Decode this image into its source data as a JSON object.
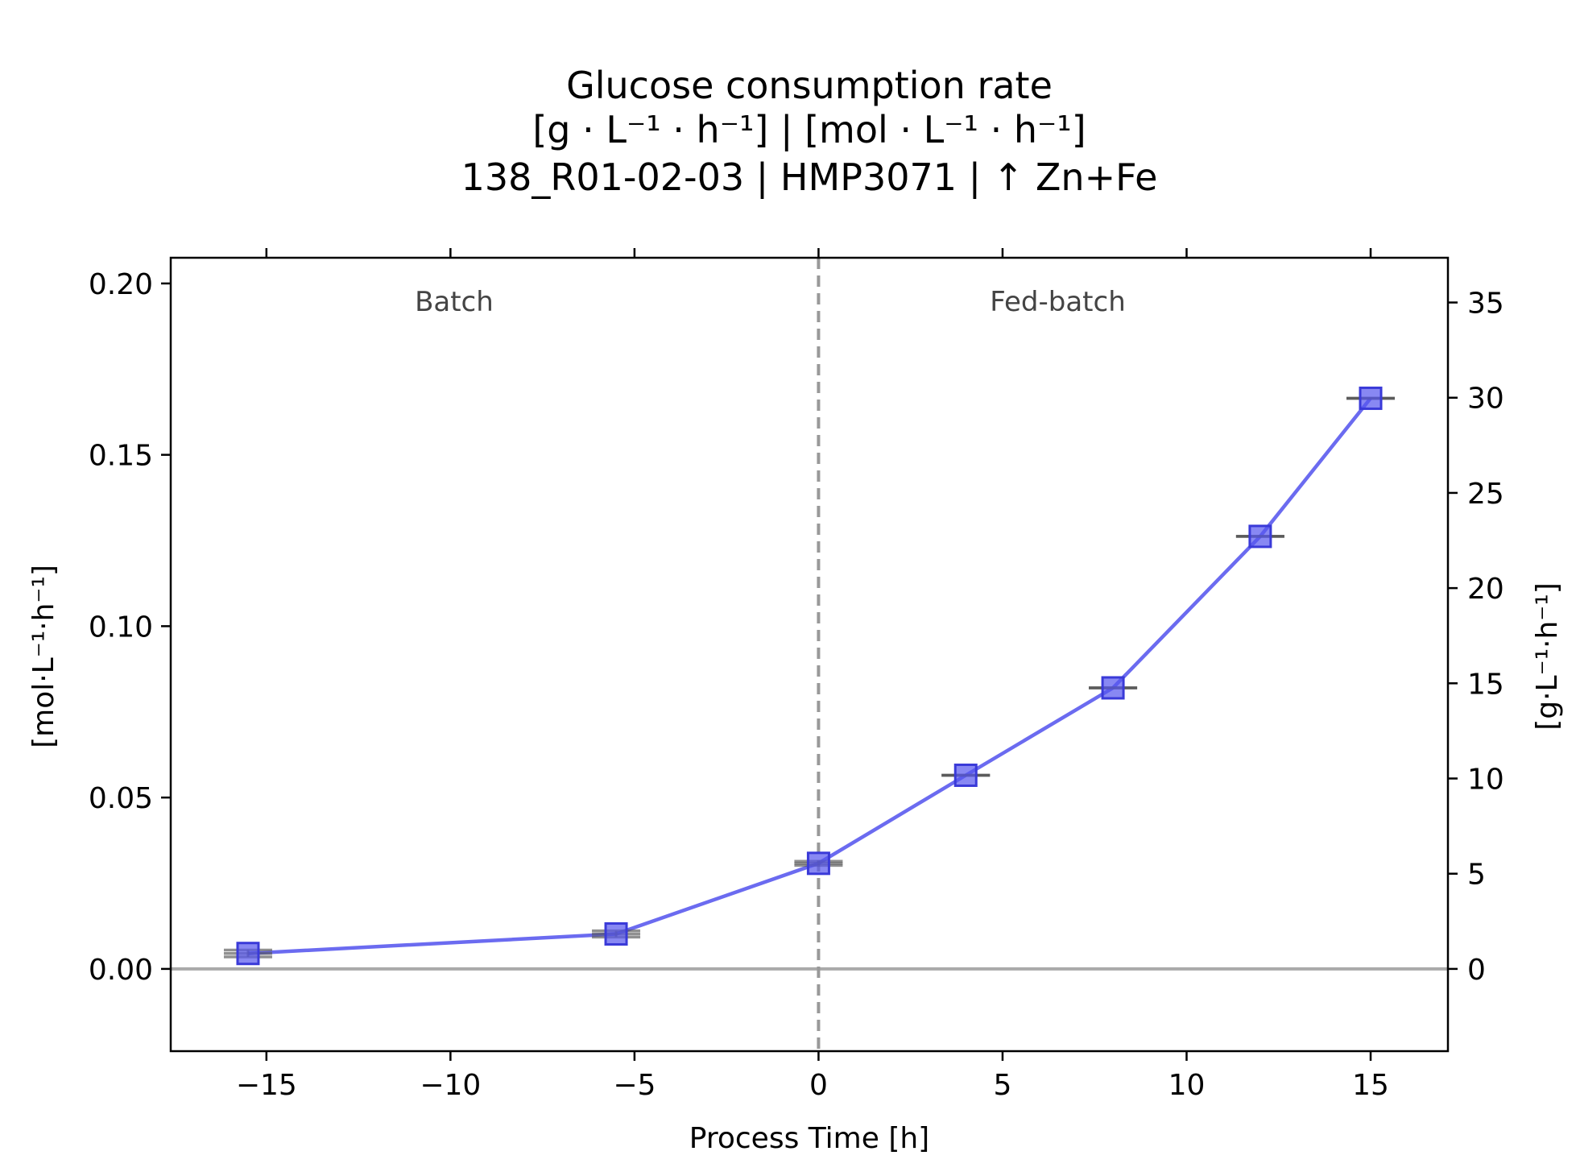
{
  "chart_data": {
    "type": "line",
    "title_lines": [
      "Glucose consumption rate",
      "[g · L⁻¹ · h⁻¹]    |    [mol · L⁻¹ · h⁻¹]",
      "138_R01-02-03  |  HMP3071  |  ↑ Zn+Fe"
    ],
    "xlabel": "Process Time [h]",
    "ylabel_left": "[mol·L⁻¹·h⁻¹]",
    "ylabel_right": "[g·L⁻¹·h⁻¹]",
    "xlim": [
      -17.6,
      17.1
    ],
    "ylim_left": [
      -0.024,
      0.2075
    ],
    "ylim_right": [
      -4.32,
      37.35
    ],
    "xticks": [
      -15,
      -10,
      -5,
      0,
      5,
      10,
      15
    ],
    "xtick_labels": [
      "−15",
      "−10",
      "−5",
      "0",
      "5",
      "10",
      "15"
    ],
    "yticks_left": [
      0.0,
      0.05,
      0.1,
      0.15,
      0.2
    ],
    "ytick_labels_left": [
      "0.00",
      "0.05",
      "0.10",
      "0.15",
      "0.20"
    ],
    "yticks_right": [
      0,
      5,
      10,
      15,
      20,
      25,
      30,
      35
    ],
    "ytick_labels_right": [
      "0",
      "5",
      "10",
      "15",
      "20",
      "25",
      "30",
      "35"
    ],
    "phase_boundary_x": 0,
    "phases": [
      {
        "label": "Batch",
        "x": -9.9,
        "y": 0.192
      },
      {
        "label": "Fed-batch",
        "x": 6.5,
        "y": 0.192
      }
    ],
    "series": [
      {
        "x": [
          -15.5,
          -5.5,
          0,
          4,
          8,
          12,
          15
        ],
        "y": [
          0.0045,
          0.0102,
          0.0308,
          0.0565,
          0.082,
          0.1262,
          0.1665
        ],
        "errors": [
          {
            "center": 0.0045,
            "low": 0.0035,
            "high": 0.0055
          },
          {
            "center": 0.0102,
            "low": 0.0093,
            "high": 0.0111
          },
          {
            "center": 0.0308,
            "low": 0.0302,
            "high": 0.0314
          },
          {
            "center": 0.0565,
            "low": 0.0565,
            "high": 0.0565
          },
          {
            "center": 0.082,
            "low": 0.082,
            "high": 0.082
          },
          {
            "center": 0.1262,
            "low": 0.1262,
            "high": 0.1262
          },
          {
            "center": 0.1665,
            "low": 0.1665,
            "high": 0.1665
          }
        ]
      }
    ],
    "colors": {
      "line": "#6b6bf0",
      "marker_fill": "#5555ee",
      "marker_edge": "#3a3ad8",
      "zero_line": "#aaaaaa",
      "phase_line": "#999999",
      "error_bar": "#555555"
    },
    "grid": false,
    "legend": "none"
  }
}
